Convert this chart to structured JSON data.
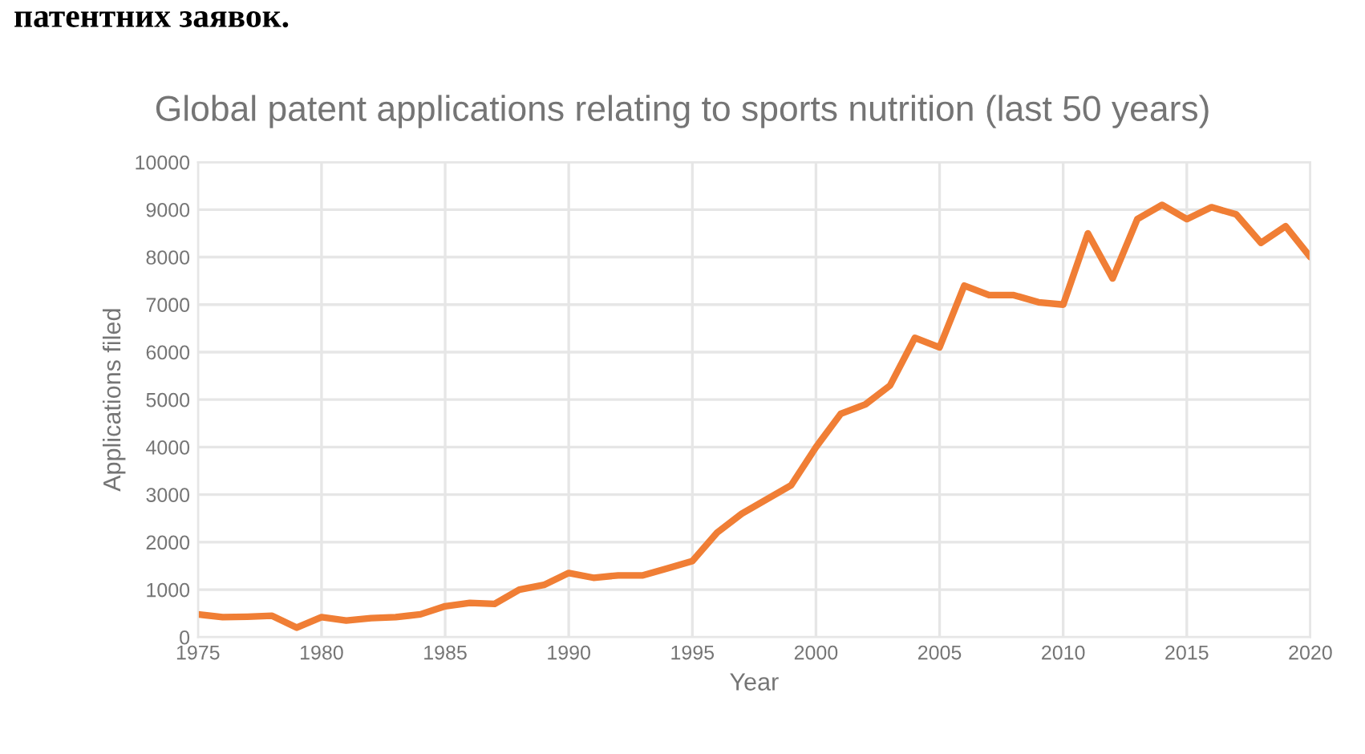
{
  "chart_data": {
    "type": "line",
    "title": "Global patent applications relating to sports nutrition (last 50 years)",
    "xlabel": "Year",
    "ylabel": "Applications filed",
    "annotations": [
      "патентних заявок."
    ],
    "x": [
      1975,
      1976,
      1977,
      1978,
      1979,
      1980,
      1981,
      1982,
      1983,
      1984,
      1985,
      1986,
      1987,
      1988,
      1989,
      1990,
      1991,
      1992,
      1993,
      1994,
      1995,
      1996,
      1997,
      1998,
      1999,
      2000,
      2001,
      2002,
      2003,
      2004,
      2005,
      2006,
      2007,
      2008,
      2009,
      2010,
      2011,
      2012,
      2013,
      2014,
      2015,
      2016,
      2017,
      2018,
      2019,
      2020
    ],
    "series": [
      {
        "color": "#f07e35",
        "values": [
          480,
          420,
          430,
          450,
          200,
          420,
          350,
          400,
          420,
          480,
          650,
          720,
          700,
          1000,
          1100,
          1350,
          1250,
          1300,
          1300,
          1450,
          1600,
          2200,
          2600,
          2900,
          3200,
          4000,
          4700,
          4900,
          5300,
          6300,
          6100,
          7400,
          7200,
          7200,
          7050,
          7000,
          8500,
          7550,
          8800,
          9100,
          8800,
          9050,
          8900,
          8300,
          8650,
          8000
        ]
      }
    ],
    "xlim": [
      1975,
      2020
    ],
    "xticks": [
      1975,
      1980,
      1985,
      1990,
      1995,
      2000,
      2005,
      2010,
      2015,
      2020
    ],
    "ylim": [
      0,
      10000
    ],
    "yticks": [
      0,
      1000,
      2000,
      3000,
      4000,
      5000,
      6000,
      7000,
      8000,
      9000,
      10000
    ],
    "grid": true,
    "marker": "none",
    "line_style": "solid"
  }
}
